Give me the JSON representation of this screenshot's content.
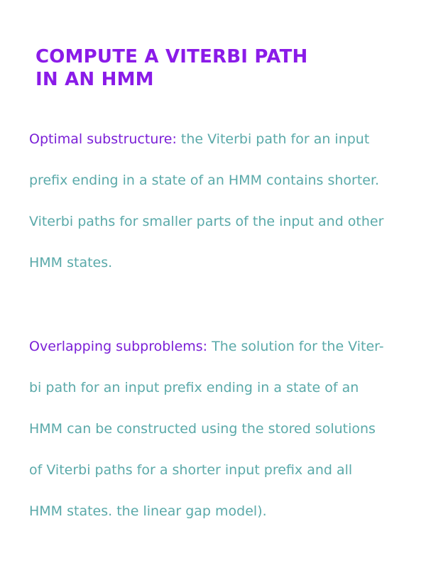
{
  "title": {
    "line1": "COMPUTE A VITERBI PATH",
    "line2": "IN AN HMM"
  },
  "paragraphs": [
    {
      "term": "Optimal substructure:",
      "lines": [
        " the Viterbi path for an input",
        "prefix ending in a state of an HMM contains shorter.",
        "Viterbi paths for smaller parts of the input and other",
        "HMM states."
      ]
    },
    {
      "term": "Overlapping subproblems:",
      "lines": [
        " The solution for the Viter-",
        "bi path for an input prefix ending in a state of an",
        "HMM can be constructed using the stored solutions",
        "of Viterbi paths for a shorter input prefix and all",
        "HMM states. the linear gap model)."
      ]
    }
  ],
  "colors": {
    "title": "#8a1be8",
    "term": "#7a1fd6",
    "body": "#5aa9a9"
  }
}
